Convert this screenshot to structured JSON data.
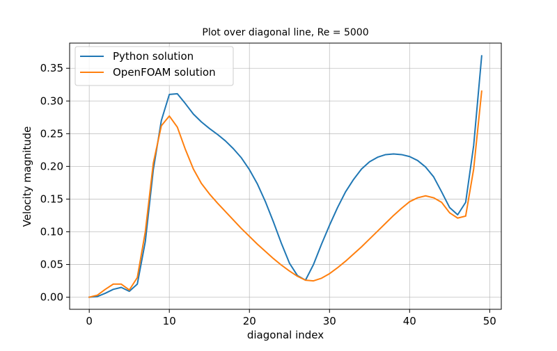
{
  "chart_data": {
    "type": "line",
    "title": "Plot over diagonal line, Re = 5000",
    "xlabel": "diagonal index",
    "ylabel": "Velocity magnitude",
    "xlim": [
      -2.45,
      51.45
    ],
    "ylim": [
      -0.0185,
      0.3885
    ],
    "xticks": [
      0,
      10,
      20,
      30,
      40,
      50
    ],
    "yticks": [
      0.0,
      0.05,
      0.1,
      0.15,
      0.2,
      0.25,
      0.3,
      0.35
    ],
    "xtick_labels": [
      "0",
      "10",
      "20",
      "30",
      "40",
      "50"
    ],
    "ytick_labels": [
      "0.00",
      "0.05",
      "0.10",
      "0.15",
      "0.20",
      "0.25",
      "0.30",
      "0.35"
    ],
    "grid": true,
    "legend_position": "upper-left",
    "x": [
      0,
      1,
      2,
      3,
      4,
      5,
      6,
      7,
      8,
      9,
      10,
      11,
      12,
      13,
      14,
      15,
      16,
      17,
      18,
      19,
      20,
      21,
      22,
      23,
      24,
      25,
      26,
      27,
      28,
      29,
      30,
      31,
      32,
      33,
      34,
      35,
      36,
      37,
      38,
      39,
      40,
      41,
      42,
      43,
      44,
      45,
      46,
      47,
      48,
      49
    ],
    "series": [
      {
        "name": "Python solution",
        "color": "#1f77b4",
        "values": [
          0.0,
          0.001,
          0.006,
          0.012,
          0.015,
          0.009,
          0.02,
          0.085,
          0.195,
          0.27,
          0.31,
          0.311,
          0.296,
          0.28,
          0.268,
          0.258,
          0.249,
          0.239,
          0.227,
          0.213,
          0.195,
          0.173,
          0.146,
          0.115,
          0.082,
          0.052,
          0.033,
          0.026,
          0.05,
          0.081,
          0.11,
          0.137,
          0.161,
          0.18,
          0.196,
          0.207,
          0.214,
          0.218,
          0.219,
          0.218,
          0.215,
          0.209,
          0.199,
          0.184,
          0.161,
          0.137,
          0.126,
          0.145,
          0.232,
          0.369
        ]
      },
      {
        "name": "OpenFOAM solution",
        "color": "#ff7f0e",
        "values": [
          0.0,
          0.003,
          0.012,
          0.02,
          0.02,
          0.011,
          0.03,
          0.1,
          0.205,
          0.262,
          0.277,
          0.26,
          0.226,
          0.196,
          0.174,
          0.158,
          0.144,
          0.131,
          0.118,
          0.105,
          0.093,
          0.081,
          0.07,
          0.059,
          0.049,
          0.04,
          0.032,
          0.026,
          0.025,
          0.029,
          0.036,
          0.045,
          0.055,
          0.066,
          0.077,
          0.089,
          0.101,
          0.113,
          0.125,
          0.136,
          0.146,
          0.152,
          0.155,
          0.152,
          0.145,
          0.129,
          0.121,
          0.124,
          0.196,
          0.315
        ]
      }
    ]
  }
}
